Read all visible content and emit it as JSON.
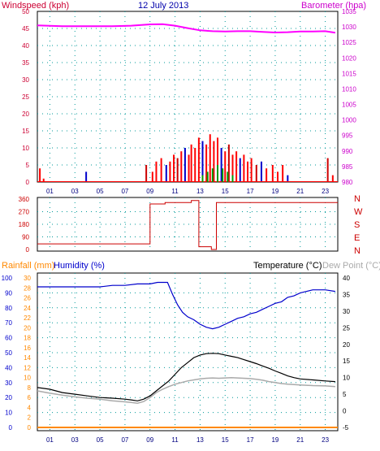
{
  "header": {
    "windspeed_label": "Windspeed (kph)",
    "date": "12 July 2013",
    "barometer_label": "Barometer (hpa)",
    "rainfall_label": "Rainfall (mm)",
    "humidity_label": "Humidity (%)",
    "temperature_label": "Temperature (°C)",
    "dewpoint_label": "Dew Point (°C)"
  },
  "colors": {
    "windspeed": "#ff0000",
    "gust_dark": "#cc0000",
    "wind_blue": "#0000cc",
    "wind_green": "#009900",
    "barometer": "#ff00ff",
    "direction": "#cc0000",
    "humidity": "#0000cc",
    "temperature": "#000000",
    "dewpoint": "#aaaaaa",
    "rainfall": "#ff8800",
    "title_windspeed": "#cc0033",
    "title_date": "#0000aa",
    "title_baro": "#cc00cc"
  },
  "x_ticks": [
    "01",
    "03",
    "05",
    "07",
    "09",
    "11",
    "13",
    "15",
    "17",
    "19",
    "21",
    "23"
  ],
  "direction_letters": [
    "N",
    "W",
    "S",
    "E",
    "N"
  ],
  "chart_data": [
    {
      "type": "line",
      "name": "wind-barometer",
      "x_range": [
        0,
        24
      ],
      "left_axis": {
        "label": "Windspeed (kph)",
        "ticks": [
          "0",
          "5",
          "10",
          "15",
          "20",
          "25",
          "30",
          "35",
          "40",
          "45",
          "50"
        ],
        "range": [
          0,
          50
        ]
      },
      "right_axis": {
        "label": "Barometer (hpa)",
        "ticks": [
          "980",
          "985",
          "990",
          "995",
          "1000",
          "1005",
          "1010",
          "1015",
          "1020",
          "1025",
          "1030",
          "1035"
        ],
        "range": [
          980,
          1035
        ]
      },
      "grid": true,
      "series": [
        {
          "name": "Barometer",
          "axis": "right",
          "x": [
            0,
            2,
            4,
            6,
            7.5,
            9,
            10,
            11,
            12,
            13,
            14,
            15,
            16,
            17,
            18,
            19,
            20,
            21,
            22,
            23,
            23.8
          ],
          "y": [
            1030.5,
            1030.2,
            1030.2,
            1030.2,
            1030.4,
            1030.8,
            1030.9,
            1030.4,
            1029.6,
            1028.9,
            1028.6,
            1028.5,
            1028.6,
            1028.6,
            1028.4,
            1028.2,
            1028.3,
            1028.5,
            1028.5,
            1028.6,
            1028.1
          ]
        }
      ],
      "wind_spikes_kph": [
        [
          0.2,
          4
        ],
        [
          0.5,
          1
        ],
        [
          3.9,
          3
        ],
        [
          8.7,
          5
        ],
        [
          9.2,
          3
        ],
        [
          9.5,
          6
        ],
        [
          9.9,
          7
        ],
        [
          10.3,
          5
        ],
        [
          10.6,
          6
        ],
        [
          10.9,
          8
        ],
        [
          11.2,
          7
        ],
        [
          11.5,
          9
        ],
        [
          11.8,
          10
        ],
        [
          12.1,
          8
        ],
        [
          12.3,
          11
        ],
        [
          12.6,
          10
        ],
        [
          12.9,
          13
        ],
        [
          13.2,
          12
        ],
        [
          13.5,
          11
        ],
        [
          13.8,
          14
        ],
        [
          14.1,
          12
        ],
        [
          14.4,
          13
        ],
        [
          14.7,
          10
        ],
        [
          15.0,
          9
        ],
        [
          15.3,
          11
        ],
        [
          15.6,
          8
        ],
        [
          15.9,
          9
        ],
        [
          16.2,
          7
        ],
        [
          16.5,
          8
        ],
        [
          16.8,
          6
        ],
        [
          17.1,
          7
        ],
        [
          17.5,
          5
        ],
        [
          17.9,
          6
        ],
        [
          18.3,
          4
        ],
        [
          18.8,
          5
        ],
        [
          19.2,
          3
        ],
        [
          19.6,
          5
        ],
        [
          20.0,
          2
        ],
        [
          23.2,
          7
        ],
        [
          23.6,
          2
        ]
      ]
    },
    {
      "type": "line",
      "name": "wind-direction",
      "x_range": [
        0,
        24
      ],
      "left_axis": {
        "ticks": [
          "0",
          "90",
          "180",
          "270",
          "360"
        ],
        "range": [
          0,
          360
        ]
      },
      "grid": true,
      "series": [
        {
          "name": "Direction",
          "x": [
            0,
            9.0,
            9.0,
            10.2,
            10.2,
            12.3,
            12.3,
            12.9,
            12.9,
            13.9,
            13.9,
            14.3,
            14.3,
            24
          ],
          "y": [
            40,
            40,
            325,
            325,
            335,
            335,
            350,
            350,
            20,
            20,
            0,
            0,
            335,
            335
          ]
        }
      ]
    },
    {
      "type": "line",
      "name": "humidity-temperature",
      "x_range": [
        0,
        24
      ],
      "axes": {
        "humidity": {
          "ticks": [
            "0",
            "10",
            "20",
            "30",
            "40",
            "50",
            "60",
            "70",
            "80",
            "90",
            "100"
          ],
          "range": [
            0,
            100
          ]
        },
        "rainfall": {
          "ticks": [
            "0",
            "2",
            "4",
            "6",
            "8",
            "10",
            "12",
            "14",
            "16",
            "18",
            "20",
            "22",
            "24",
            "26",
            "28",
            "30"
          ],
          "range": [
            0,
            30
          ]
        },
        "temperature": {
          "ticks": [
            "-5",
            "0",
            "5",
            "10",
            "15",
            "20",
            "25",
            "30",
            "35",
            "40"
          ],
          "range": [
            -5,
            40
          ]
        }
      },
      "grid": true,
      "series": [
        {
          "name": "Humidity",
          "axis": "humidity",
          "x": [
            0,
            1,
            2,
            3,
            4,
            5,
            6,
            7,
            8,
            9,
            9.6,
            10.0,
            10.4,
            10.8,
            11.2,
            11.6,
            12.0,
            12.5,
            13.0,
            13.5,
            14.0,
            14.5,
            15.0,
            15.5,
            16.0,
            16.5,
            17.0,
            17.5,
            18.0,
            18.5,
            19.0,
            19.5,
            20.0,
            20.5,
            21.0,
            21.5,
            22.0,
            23.0,
            23.8
          ],
          "y": [
            94,
            94,
            94,
            94,
            94,
            94,
            95,
            95,
            96,
            96,
            97,
            97,
            97,
            89,
            82,
            77,
            74,
            72,
            69,
            67,
            66,
            67,
            69,
            71,
            73,
            74,
            76,
            77,
            79,
            81,
            83,
            84,
            87,
            88,
            90,
            91,
            92,
            92,
            91
          ]
        },
        {
          "name": "Temperature",
          "axis": "temperature",
          "x": [
            0,
            1,
            2,
            3,
            4,
            5,
            6,
            7,
            7.5,
            8,
            8.5,
            9,
            9.5,
            10,
            10.5,
            11,
            11.5,
            12,
            12.5,
            13,
            13.5,
            14,
            14.5,
            15,
            15.5,
            16,
            16.5,
            17,
            17.5,
            18,
            18.5,
            19,
            19.5,
            20,
            20.5,
            21,
            22,
            23,
            23.8
          ],
          "y": [
            7.0,
            6.5,
            5.5,
            5.0,
            4.5,
            4.0,
            3.8,
            3.5,
            3.3,
            3.0,
            3.5,
            4.5,
            6.0,
            7.5,
            9.0,
            11.0,
            13.0,
            14.5,
            16.0,
            16.8,
            17.2,
            17.3,
            17.2,
            16.8,
            16.4,
            16.0,
            15.4,
            14.8,
            14.2,
            13.5,
            12.8,
            12.0,
            11.3,
            10.5,
            10.0,
            9.6,
            9.3,
            9.0,
            8.8
          ]
        },
        {
          "name": "Dew Point",
          "axis": "temperature",
          "x": [
            0,
            1,
            2,
            3,
            4,
            5,
            6,
            7,
            7.5,
            8,
            8.5,
            9,
            9.5,
            10,
            10.5,
            11,
            11.5,
            12,
            12.5,
            13,
            13.5,
            14,
            14.5,
            15,
            15.5,
            16,
            16.5,
            17,
            17.5,
            18,
            18.5,
            19,
            19.5,
            20,
            20.5,
            21,
            22,
            23,
            23.8
          ],
          "y": [
            6.0,
            5.3,
            4.7,
            4.2,
            3.8,
            3.5,
            3.0,
            2.7,
            2.5,
            2.3,
            2.8,
            4.0,
            5.5,
            6.5,
            7.3,
            8.0,
            8.5,
            9.0,
            9.3,
            9.6,
            9.8,
            9.9,
            9.8,
            9.9,
            10.0,
            9.9,
            9.8,
            9.7,
            9.5,
            9.2,
            8.8,
            8.5,
            8.2,
            8.0,
            7.9,
            7.8,
            7.6,
            7.5,
            7.3
          ]
        },
        {
          "name": "Rainfall",
          "axis": "rainfall",
          "x": [
            0,
            24
          ],
          "y": [
            0,
            0
          ]
        }
      ]
    }
  ]
}
